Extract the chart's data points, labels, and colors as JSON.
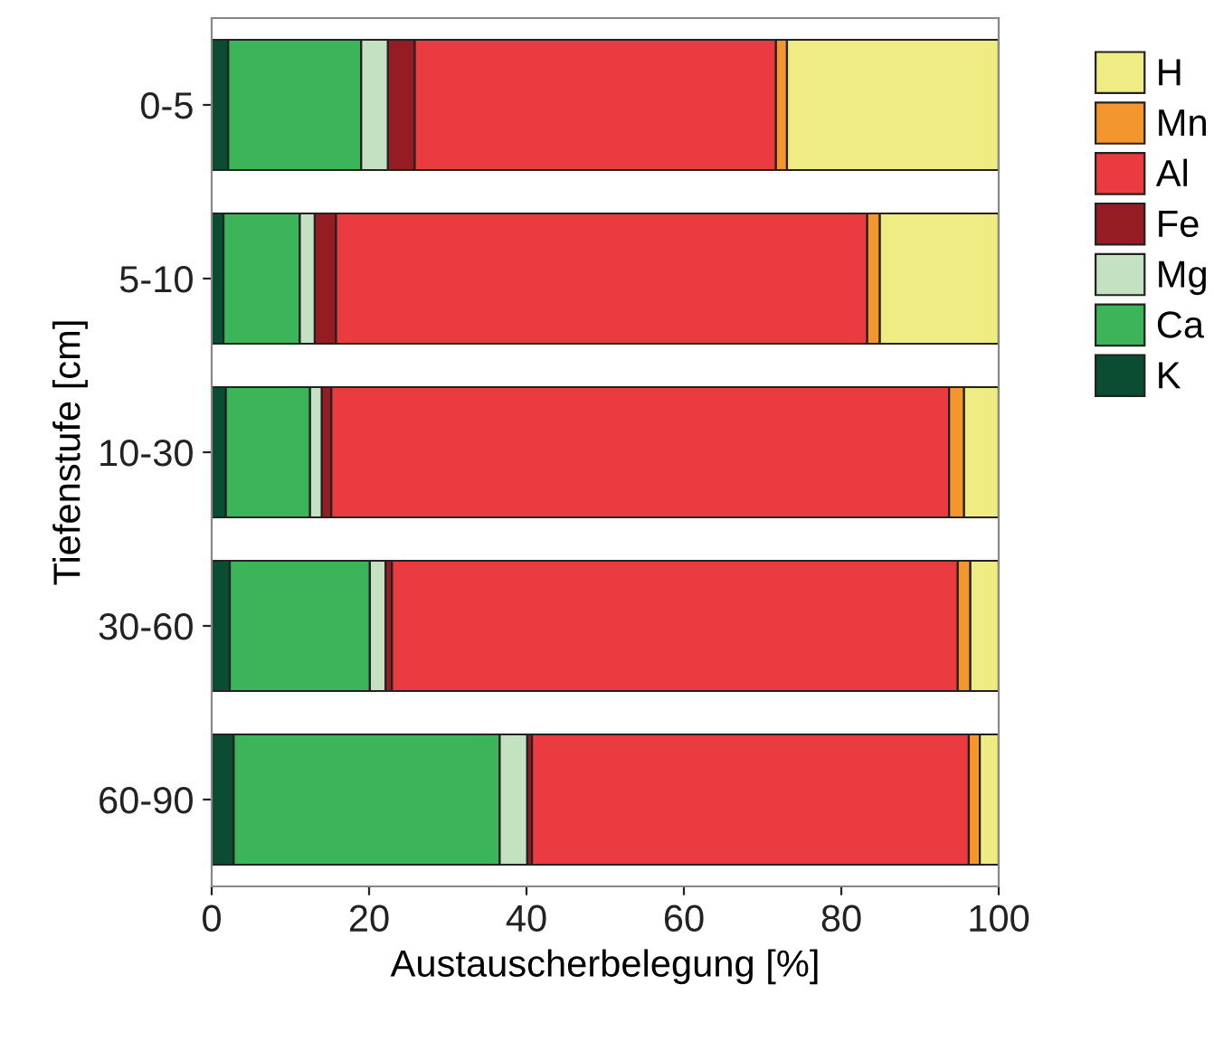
{
  "chart_data": {
    "type": "bar",
    "orientation": "horizontal",
    "stacked": true,
    "xlabel": "Austauscherbelegung [%]",
    "ylabel": "Tiefenstufe [cm]",
    "categories": [
      "0-5",
      "5-10",
      "10-30",
      "30-60",
      "60-90"
    ],
    "series": [
      {
        "name": "K",
        "color": "#0a4d32",
        "values": [
          2.1,
          1.5,
          1.8,
          2.3,
          2.8
        ]
      },
      {
        "name": "Ca",
        "color": "#3cb55a",
        "values": [
          16.9,
          9.7,
          10.7,
          17.8,
          33.8
        ]
      },
      {
        "name": "Mg",
        "color": "#c4e2c2",
        "values": [
          3.4,
          1.9,
          1.5,
          2.0,
          3.5
        ]
      },
      {
        "name": "Fe",
        "color": "#961c24",
        "values": [
          3.4,
          2.7,
          1.2,
          0.8,
          0.6
        ]
      },
      {
        "name": "Al",
        "color": "#ea3c40",
        "values": [
          45.9,
          67.5,
          78.5,
          71.9,
          55.5
        ]
      },
      {
        "name": "Mn",
        "color": "#f4962e",
        "values": [
          1.4,
          1.6,
          1.9,
          1.6,
          1.4
        ]
      },
      {
        "name": "H",
        "color": "#f0ec84",
        "values": [
          26.9,
          15.1,
          4.4,
          3.6,
          2.4
        ]
      }
    ],
    "xlim": [
      0,
      100
    ],
    "xticks": [
      0,
      20,
      40,
      60,
      80,
      100
    ],
    "grid": false,
    "legend": "top right"
  }
}
